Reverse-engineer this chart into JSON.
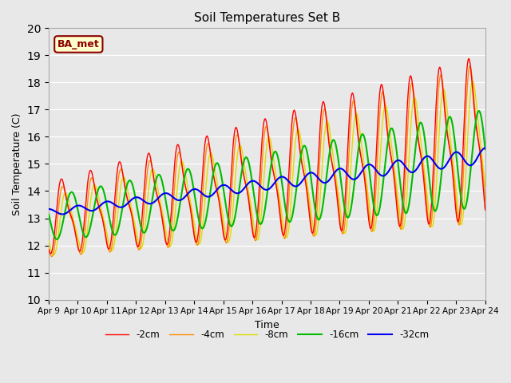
{
  "title": "Soil Temperatures Set B",
  "xlabel": "Time",
  "ylabel": "Soil Temperature (C)",
  "ylim": [
    10.0,
    20.0
  ],
  "yticks": [
    10.0,
    11.0,
    12.0,
    13.0,
    14.0,
    15.0,
    16.0,
    17.0,
    18.0,
    19.0,
    20.0
  ],
  "xtick_labels": [
    "Apr 9",
    "Apr 10",
    "Apr 11",
    "Apr 12",
    "Apr 13",
    "Apr 14",
    "Apr 15",
    "Apr 16",
    "Apr 17",
    "Apr 18",
    "Apr 19",
    "Apr 20",
    "Apr 21",
    "Apr 22",
    "Apr 23",
    "Apr 24"
  ],
  "annotation_text": "BA_met",
  "annotation_color": "#8B0000",
  "annotation_bg": "#FFFFCC",
  "background_color": "#E8E8E8",
  "plot_bg_color": "#E8E8E8",
  "lines": [
    {
      "label": "-2cm",
      "color": "#FF0000",
      "linewidth": 1.0,
      "zorder": 5
    },
    {
      "label": "-4cm",
      "color": "#FF8C00",
      "linewidth": 1.0,
      "zorder": 4
    },
    {
      "label": "-8cm",
      "color": "#DDDD00",
      "linewidth": 1.0,
      "zorder": 3
    },
    {
      "label": "-16cm",
      "color": "#00BB00",
      "linewidth": 1.5,
      "zorder": 6
    },
    {
      "label": "-32cm",
      "color": "#0000EE",
      "linewidth": 1.5,
      "zorder": 7
    }
  ],
  "legend_ncol": 5,
  "figsize": [
    6.4,
    4.8
  ],
  "dpi": 100
}
